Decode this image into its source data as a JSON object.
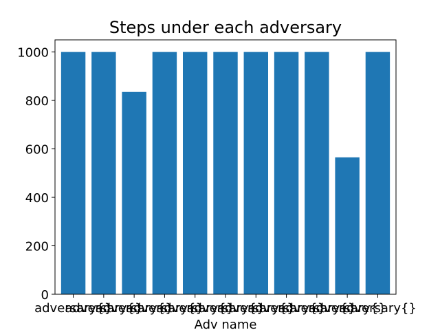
{
  "chart_data": {
    "type": "bar",
    "title": "Steps under each adversary",
    "xlabel": "Adv name",
    "ylabel": "",
    "categories": [
      "adversary{}",
      "adversary{}",
      "adversary{}",
      "adversary{}",
      "adversary{}",
      "adversary{}",
      "adversary{}",
      "adversary{}",
      "adversary{}",
      "adversary{}",
      "adversary{}"
    ],
    "values": [
      1000,
      1000,
      835,
      1000,
      1000,
      1000,
      1000,
      1000,
      1000,
      565,
      1000
    ],
    "ylim": [
      0,
      1050
    ],
    "yticks": [
      0,
      200,
      400,
      600,
      800,
      1000
    ],
    "bar_color": "#1f77b4",
    "grid": false,
    "legend": "none"
  }
}
